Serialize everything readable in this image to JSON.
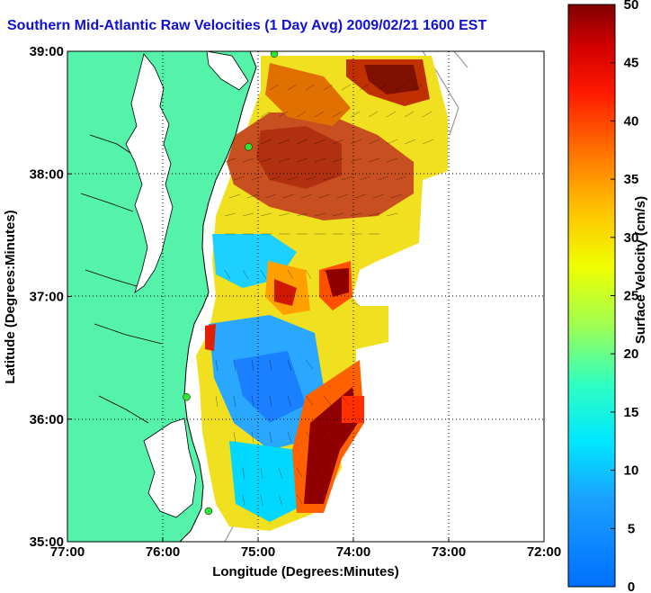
{
  "title": "Southern Mid-Atlantic Raw Velocities (1 Day Avg) 2009/02/21 1600 EST",
  "xlabel": "Longitude (Degrees:Minutes)",
  "ylabel": "Latitude (Degrees:Minutes)",
  "x_ticks": [
    "77:00",
    "76:00",
    "75:00",
    "74:00",
    "73:00",
    "72:00"
  ],
  "y_ticks": [
    "39:00",
    "38:00",
    "37:00",
    "36:00",
    "35:00"
  ],
  "colorbar": {
    "label": "Surface Velocity (cm/s)",
    "ticks": [
      "50",
      "45",
      "40",
      "35",
      "30",
      "25",
      "20",
      "15",
      "10",
      "5",
      "0"
    ],
    "min": 0,
    "max": 50
  },
  "colors": {
    "land": "#55f2a9",
    "water": "#ffffff",
    "title": "#1010d8",
    "station_marker": "#33e233"
  },
  "map": {
    "lon_range": [
      -77,
      -72
    ],
    "lat_range": [
      35,
      39
    ],
    "grid": true,
    "stations": [
      {
        "lat": 38.98,
        "lon": -74.83
      },
      {
        "lat": 38.22,
        "lon": -75.1
      },
      {
        "lat": 36.18,
        "lon": -75.75
      },
      {
        "lat": 35.25,
        "lon": -75.52
      }
    ]
  }
}
